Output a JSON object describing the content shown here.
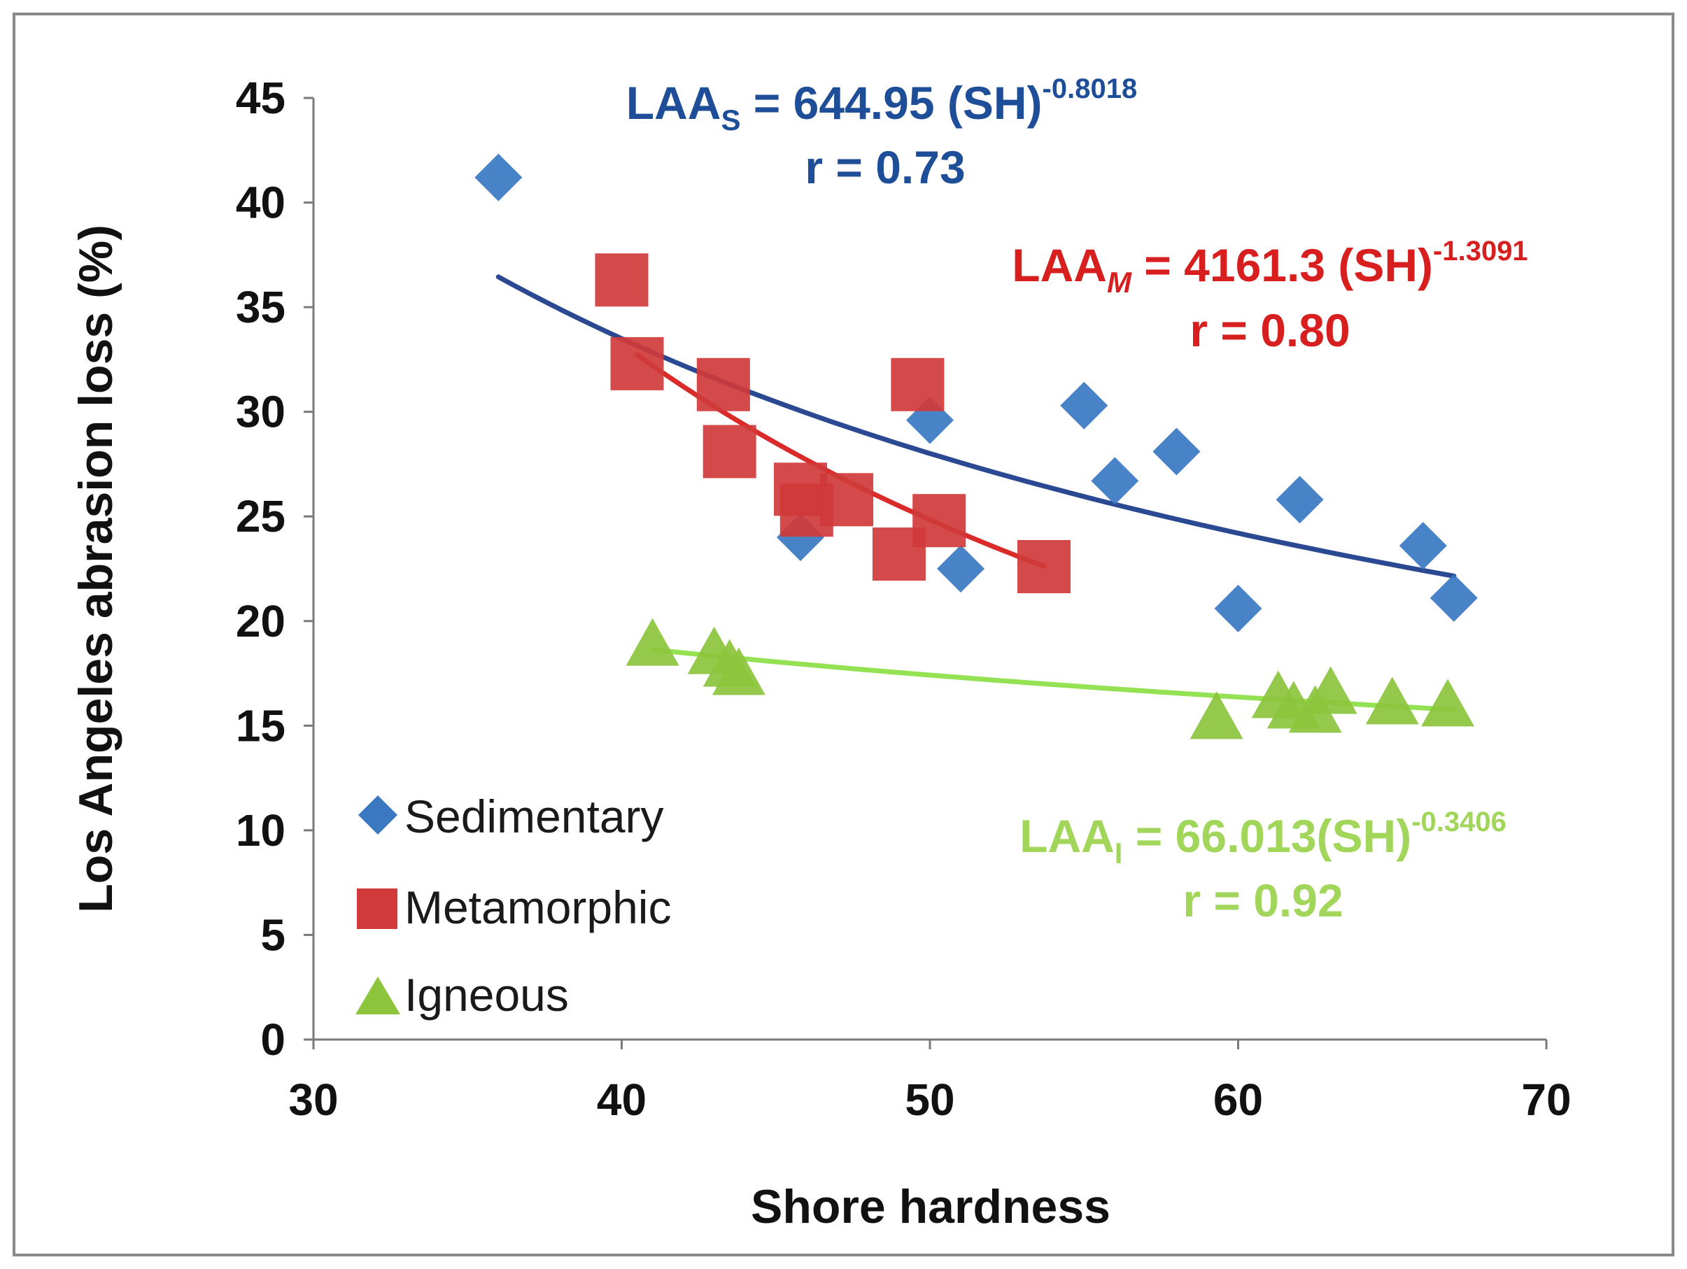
{
  "chart_data": {
    "type": "scatter",
    "xlabel": "Shore hardness",
    "ylabel": "Los Angeles abrasion loss (%)",
    "xlim": [
      30,
      70
    ],
    "ylim": [
      0,
      45
    ],
    "xticks": [
      "30",
      "40",
      "50",
      "60",
      "70"
    ],
    "yticks": [
      "0",
      "5",
      "10",
      "15",
      "20",
      "25",
      "30",
      "35",
      "40",
      "45"
    ],
    "legend_position": "bottom-left",
    "series": [
      {
        "name": "Sedimentary",
        "marker": "diamond",
        "color": "#3a78c2",
        "trend_color": "#1f3f8c",
        "points": [
          [
            36,
            41.2
          ],
          [
            45.8,
            24.0
          ],
          [
            50,
            29.6
          ],
          [
            51,
            22.5
          ],
          [
            55,
            30.3
          ],
          [
            56,
            26.7
          ],
          [
            58,
            28.1
          ],
          [
            60,
            20.6
          ],
          [
            62,
            25.8
          ],
          [
            66,
            23.6
          ],
          [
            67,
            21.1
          ]
        ],
        "fit": {
          "a": 644.95,
          "b": -0.8018,
          "x_range": [
            36,
            67
          ]
        },
        "equation": {
          "lhs": "LAA",
          "sub": "S",
          "rhs": " = 644.95 (SH)",
          "exp": "-0.8018",
          "r": "r = 0.73"
        }
      },
      {
        "name": "Metamorphic",
        "marker": "square",
        "color": "#d03a3a",
        "trend_color": "#d81f1f",
        "points": [
          [
            40,
            36.3
          ],
          [
            40.5,
            32.3
          ],
          [
            43.3,
            31.3
          ],
          [
            43.5,
            28.1
          ],
          [
            45.8,
            26.3
          ],
          [
            46,
            25.3
          ],
          [
            47.3,
            25.8
          ],
          [
            49,
            23.2
          ],
          [
            49.6,
            31.3
          ],
          [
            50.3,
            24.8
          ],
          [
            53.7,
            22.6
          ]
        ],
        "fit": {
          "a": 4161.3,
          "b": -1.3091,
          "x_range": [
            40.5,
            53.7
          ]
        },
        "equation": {
          "lhs": "LAA",
          "sub": "M",
          "rhs": " = 4161.3 (SH)",
          "exp": "-1.3091",
          "r": "r = 0.80"
        }
      },
      {
        "name": "Igneous",
        "marker": "triangle",
        "color": "#8cc43c",
        "trend_color": "#8ee04a",
        "points": [
          [
            41,
            18.8
          ],
          [
            43,
            18.4
          ],
          [
            43.5,
            17.8
          ],
          [
            43.8,
            17.4
          ],
          [
            59.3,
            15.3
          ],
          [
            61.3,
            16.3
          ],
          [
            61.8,
            15.8
          ],
          [
            62.5,
            15.6
          ],
          [
            63,
            16.5
          ],
          [
            65,
            16.0
          ],
          [
            66.8,
            15.9
          ]
        ],
        "fit": {
          "a": 66.013,
          "b": -0.3406,
          "x_range": [
            41,
            67
          ]
        },
        "equation": {
          "lhs": "LAA",
          "sub": "I",
          "rhs": " = 66.013(SH)",
          "exp": "-0.3406",
          "r": "r = 0.92"
        }
      }
    ]
  }
}
